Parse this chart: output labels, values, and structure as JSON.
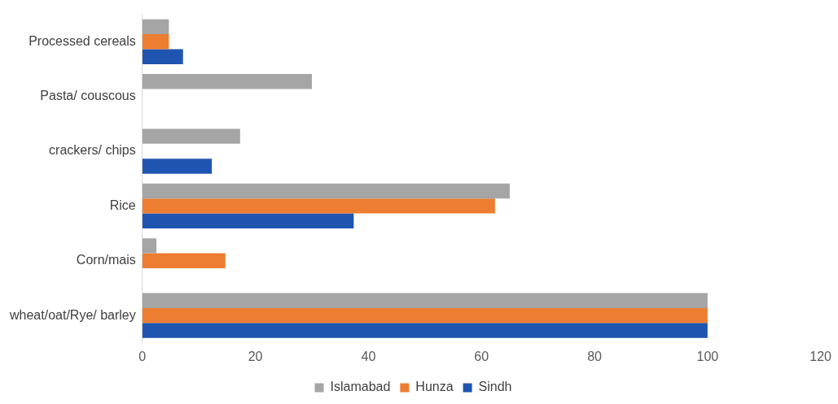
{
  "chart_data": {
    "type": "bar",
    "orientation": "horizontal",
    "categories": [
      "Processed cereals",
      "Pasta/ couscous",
      "crackers/ chips",
      "Rice",
      "Corn/mais",
      "wheat/oat/Rye/ barley"
    ],
    "series": [
      {
        "name": "Islamabad",
        "color": "#a5a5a5",
        "values": [
          4.7,
          30,
          17.3,
          65,
          2.5,
          100
        ]
      },
      {
        "name": "Hunza",
        "color": "#ed7d31",
        "values": [
          4.7,
          null,
          null,
          62.4,
          14.7,
          100
        ]
      },
      {
        "name": "Sindh",
        "color": "#1f55b0",
        "values": [
          7.2,
          null,
          12.3,
          37.4,
          null,
          100
        ]
      }
    ],
    "xlim": [
      0,
      120
    ],
    "xticks": [
      0,
      20,
      40,
      60,
      80,
      100,
      120
    ],
    "grid": false,
    "legend": "bottom"
  }
}
